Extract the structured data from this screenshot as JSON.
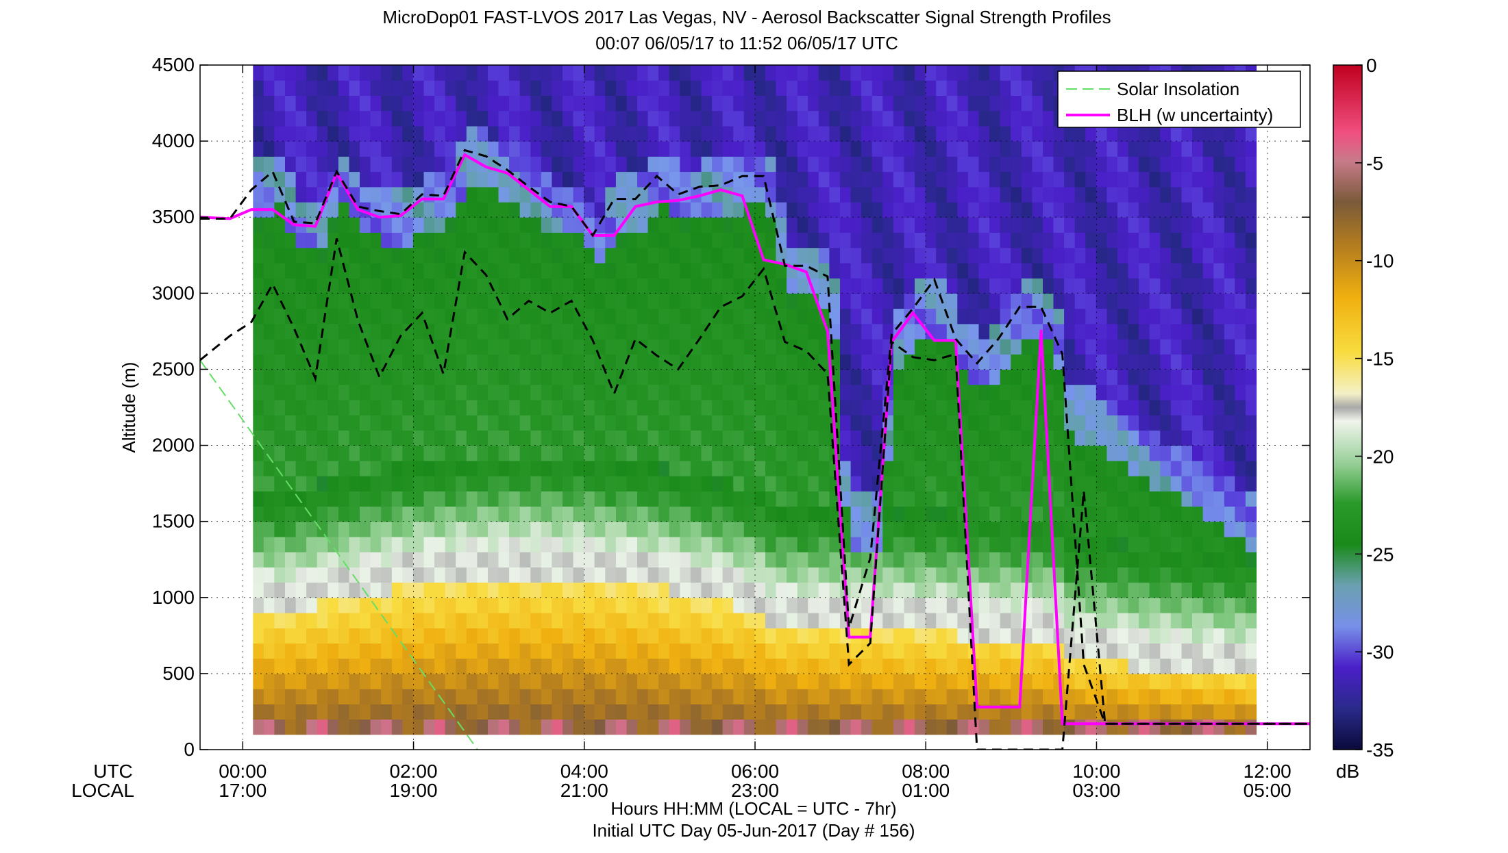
{
  "title_line1": "MicroDop01 FAST-LVOS 2017 Las Vegas, NV - Aerosol Backscatter Signal Strength Profiles",
  "title_line2": "00:07 06/05/17 to 11:52 06/05/17  UTC",
  "row_label_utc": "UTC",
  "row_label_local": "LOCAL",
  "xlabel_line1": "Hours HH:MM  (LOCAL = UTC - 7hr)",
  "xlabel_line2": "Initial UTC Day 05-Jun-2017 (Day # 156)",
  "ylabel": "Altitude (m)",
  "colorbar_unit": "dB",
  "legend": {
    "solar": "Solar Insolation",
    "blh": "BLH (w uncertainty)"
  },
  "colors": {
    "blh": "#ff00ff",
    "uncertainty": "#000000",
    "solar": "#66dd66"
  },
  "chart_data": {
    "type": "heatmap",
    "title": "MicroDop01 FAST-LVOS 2017 Las Vegas, NV - Aerosol Backscatter Signal Strength Profiles",
    "subtitle": "00:07 06/05/17 to 11:52 06/05/17  UTC",
    "x_unit": "hours UTC",
    "xlim": [
      -0.5,
      12.5
    ],
    "ylim": [
      0,
      4500
    ],
    "ylabel": "Altitude (m)",
    "grid": true,
    "legend_position": "top-right",
    "x_ticks_utc": [
      "00:00",
      "02:00",
      "04:00",
      "06:00",
      "08:00",
      "10:00",
      "12:00"
    ],
    "x_ticks_local": [
      "17:00",
      "19:00",
      "21:00",
      "23:00",
      "01:00",
      "03:00",
      "05:00"
    ],
    "y_ticks": [
      "0",
      "500",
      "1000",
      "1500",
      "2000",
      "2500",
      "3000",
      "3500",
      "4000",
      "4500"
    ],
    "colorbar": {
      "label": "dB",
      "range": [
        -35,
        0
      ],
      "ticks": [
        "0",
        "-5",
        "-10",
        "-15",
        "-20",
        "-25",
        "-30",
        "-35"
      ]
    },
    "heatmap_x_range_hours": [
      0.12,
      11.87
    ],
    "heatmap_y_range_m": [
      100,
      4500
    ],
    "series": [
      {
        "name": "BLH (w uncertainty)",
        "x": [
          -0.5,
          -0.15,
          0.1,
          0.35,
          0.6,
          0.85,
          1.1,
          1.35,
          1.6,
          1.85,
          2.1,
          2.35,
          2.6,
          2.85,
          3.1,
          3.35,
          3.6,
          3.85,
          4.1,
          4.35,
          4.6,
          4.85,
          5.1,
          5.35,
          5.6,
          5.85,
          6.1,
          6.35,
          6.6,
          6.85,
          7.1,
          7.35,
          7.6,
          7.85,
          8.1,
          8.35,
          8.6,
          8.85,
          9.1,
          9.35,
          9.6,
          9.85,
          10.1,
          10.35,
          10.6,
          10.85,
          11.1,
          11.35,
          11.6,
          11.85,
          12.1,
          12.5
        ],
        "y": [
          3500,
          3490,
          3550,
          3550,
          3450,
          3440,
          3790,
          3550,
          3500,
          3510,
          3620,
          3620,
          3910,
          3830,
          3790,
          3680,
          3570,
          3570,
          3380,
          3380,
          3570,
          3600,
          3610,
          3640,
          3680,
          3640,
          3220,
          3190,
          3140,
          2750,
          740,
          740,
          2680,
          2870,
          2690,
          2690,
          280,
          280,
          280,
          2760,
          170,
          170,
          170,
          170,
          170,
          170,
          170,
          170,
          170,
          170,
          170,
          170
        ]
      },
      {
        "name": "upper uncertainty",
        "x": [
          -0.5,
          -0.15,
          0.1,
          0.35,
          0.6,
          0.85,
          1.1,
          1.35,
          1.6,
          1.85,
          2.1,
          2.35,
          2.6,
          2.85,
          3.1,
          3.35,
          3.6,
          3.85,
          4.1,
          4.35,
          4.6,
          4.85,
          5.1,
          5.35,
          5.6,
          5.85,
          6.1,
          6.35,
          6.6,
          6.85,
          7.1,
          7.35,
          7.6,
          7.85,
          8.1,
          8.35,
          8.6,
          8.85,
          9.1,
          9.35,
          9.6,
          9.85,
          10.1,
          10.35,
          10.6,
          10.85,
          11.1,
          11.35,
          11.6,
          11.85,
          12.1,
          12.5
        ],
        "y": [
          3490,
          3490,
          3680,
          3800,
          3470,
          3460,
          3800,
          3570,
          3540,
          3520,
          3650,
          3640,
          3940,
          3900,
          3810,
          3700,
          3600,
          3570,
          3380,
          3620,
          3620,
          3770,
          3650,
          3700,
          3710,
          3770,
          3770,
          3180,
          3180,
          3110,
          800,
          1260,
          2730,
          2900,
          3090,
          2700,
          2540,
          2700,
          2910,
          2910,
          2600,
          560,
          170,
          170,
          170,
          170,
          170,
          170,
          170,
          170,
          170,
          170
        ]
      },
      {
        "name": "lower uncertainty",
        "x": [
          -0.5,
          -0.15,
          0.1,
          0.35,
          0.6,
          0.85,
          1.1,
          1.35,
          1.6,
          1.85,
          2.1,
          2.35,
          2.6,
          2.85,
          3.1,
          3.35,
          3.6,
          3.85,
          4.1,
          4.35,
          4.6,
          4.85,
          5.1,
          5.35,
          5.6,
          5.85,
          6.1,
          6.35,
          6.6,
          6.85,
          7.1,
          7.35,
          7.6,
          7.85,
          8.1,
          8.35,
          8.6,
          8.85,
          9.1,
          9.35,
          9.6,
          9.85,
          10.1,
          10.35,
          10.6,
          10.85,
          11.1,
          11.35,
          11.6,
          11.85,
          12.1,
          12.5
        ],
        "y": [
          2560,
          2720,
          2810,
          3060,
          2770,
          2440,
          3360,
          2820,
          2450,
          2720,
          2870,
          2470,
          3270,
          3120,
          2830,
          2950,
          2870,
          2950,
          2690,
          2340,
          2700,
          2590,
          2500,
          2700,
          2910,
          2980,
          3160,
          2680,
          2620,
          2470,
          560,
          700,
          2680,
          2580,
          2560,
          2600,
          0,
          0,
          0,
          0,
          0,
          1700,
          170,
          170,
          170,
          170,
          170,
          170,
          170,
          170,
          170,
          170
        ]
      },
      {
        "name": "Solar Insolation",
        "x": [
          -0.5,
          2.75
        ],
        "y": [
          2560,
          0
        ]
      }
    ]
  }
}
